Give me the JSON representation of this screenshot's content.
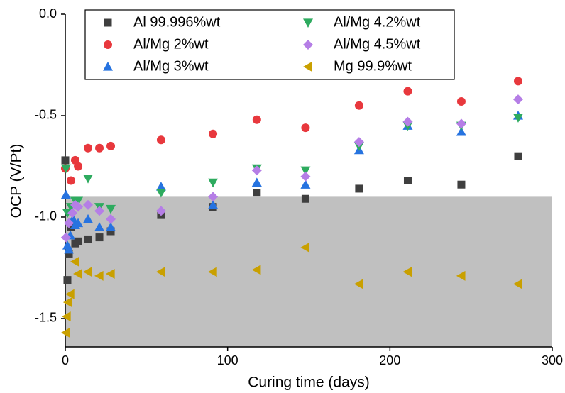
{
  "chart_data": {
    "type": "scatter",
    "xlabel": "Curing time (days)",
    "ylabel": "OCP (V/Pt)",
    "xlim": [
      0,
      300
    ],
    "ylim": [
      -1.64,
      0
    ],
    "xticks": [
      0,
      100,
      200,
      300
    ],
    "yticks": [
      {
        "value": 0,
        "label": "0.0"
      },
      -0.5,
      {
        "value": -1,
        "label": "-1.0"
      },
      -1.5
    ],
    "shaded_below": -0.9,
    "shade_color": "#c0c0c0",
    "legend": "top-left",
    "series": [
      {
        "name": "Al 99.996%wt",
        "color": "#3f3f3f",
        "marker": "square",
        "x": [
          0,
          1.3,
          2.2,
          3.5,
          6.1,
          7.9,
          14,
          21,
          28,
          59,
          91,
          118,
          148,
          181,
          211,
          244,
          279
        ],
        "values": [
          -0.72,
          -1.31,
          -1.18,
          -1.05,
          -1.13,
          -1.12,
          -1.11,
          -1.1,
          -1.07,
          -0.99,
          -0.95,
          -0.88,
          -0.91,
          -0.86,
          -0.82,
          -0.84,
          -0.7
        ]
      },
      {
        "name": "Al/Mg 2%wt",
        "color": "#e8383d",
        "marker": "circle",
        "x": [
          0,
          3.5,
          6.1,
          7.9,
          14,
          21,
          28,
          59,
          91,
          118,
          148,
          181,
          211,
          244,
          279
        ],
        "values": [
          -0.76,
          -0.82,
          -0.72,
          -0.75,
          -0.66,
          -0.66,
          -0.65,
          -0.62,
          -0.59,
          -0.52,
          -0.56,
          -0.45,
          -0.38,
          -0.43,
          -0.33
        ]
      },
      {
        "name": "Al/Mg 3%wt",
        "color": "#2673e0",
        "marker": "triangle-up",
        "x": [
          0.4,
          1.3,
          2.2,
          3.1,
          4.8,
          6.1,
          7.9,
          14,
          21,
          28,
          59,
          91,
          118,
          148,
          181,
          211,
          244,
          279
        ],
        "values": [
          -0.89,
          -1.14,
          -1.16,
          -1.09,
          -1.01,
          -1.04,
          -1.03,
          -1.01,
          -1.05,
          -1.05,
          -0.85,
          -0.94,
          -0.83,
          -0.84,
          -0.67,
          -0.55,
          -0.58,
          -0.5
        ]
      },
      {
        "name": "Al/Mg 4.2%wt",
        "color": "#2eab5f",
        "marker": "triangle-down",
        "x": [
          0.4,
          1.3,
          3.5,
          6.1,
          7.9,
          14,
          21,
          28,
          59,
          91,
          118,
          148,
          181,
          211,
          244,
          279
        ],
        "values": [
          -0.76,
          -0.98,
          -0.95,
          -0.92,
          -0.92,
          -0.81,
          -0.95,
          -0.96,
          -0.88,
          -0.83,
          -0.76,
          -0.77,
          -0.65,
          -0.55,
          -0.55,
          -0.51
        ]
      },
      {
        "name": "Al/Mg 4.5%wt",
        "color": "#b57ee6",
        "marker": "diamond",
        "x": [
          0.4,
          2.2,
          4.4,
          6.1,
          7.9,
          14,
          21,
          28,
          59,
          91,
          118,
          148,
          181,
          211,
          244,
          279
        ],
        "values": [
          -1.1,
          -1.03,
          -0.98,
          -0.94,
          -0.95,
          -0.94,
          -0.97,
          -1.01,
          -0.97,
          -0.9,
          -0.77,
          -0.8,
          -0.63,
          -0.53,
          -0.54,
          -0.42
        ]
      },
      {
        "name": "Mg 99.9%wt",
        "color": "#c9a000",
        "marker": "triangle-left",
        "x": [
          0.4,
          0.9,
          1.7,
          3.1,
          6.1,
          7.9,
          14,
          21,
          28,
          59,
          91,
          118,
          148,
          181,
          211,
          244,
          279
        ],
        "values": [
          -1.57,
          -1.49,
          -1.42,
          -1.38,
          -1.22,
          -1.28,
          -1.27,
          -1.29,
          -1.28,
          -1.27,
          -1.27,
          -1.26,
          -1.15,
          -1.33,
          -1.27,
          -1.29,
          -1.33
        ]
      }
    ]
  }
}
